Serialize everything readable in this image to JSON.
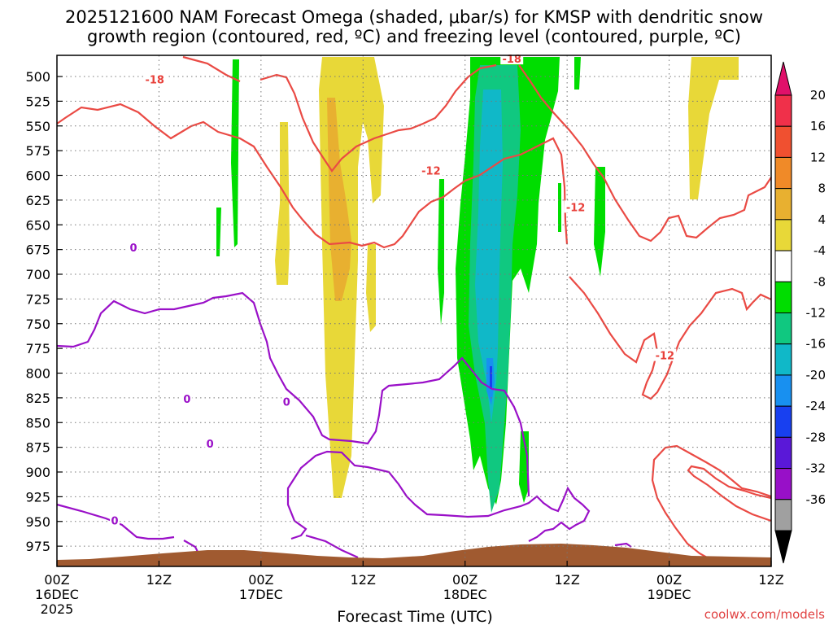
{
  "chart_data": {
    "type": "time-height cross section",
    "title_line1": "2025121600 NAM Forecast Omega (shaded, μbar/s) for KMSP with dendritic snow",
    "title_line2": "growth region (contoured, red, ºC) and freezing level (contoured, purple, ºC)",
    "xlabel": "Forecast Time (UTC)",
    "credit": "coolwx.com/models",
    "x_range_hours": [
      0,
      84
    ],
    "y_range_hpa": [
      480,
      985
    ],
    "x_ticks": [
      {
        "hour": 0,
        "label": "00Z",
        "sublabel": "16DEC",
        "sublabel2": "2025"
      },
      {
        "hour": 12,
        "label": "12Z",
        "sublabel": "",
        "sublabel2": ""
      },
      {
        "hour": 24,
        "label": "00Z",
        "sublabel": "17DEC",
        "sublabel2": ""
      },
      {
        "hour": 36,
        "label": "12Z",
        "sublabel": "",
        "sublabel2": ""
      },
      {
        "hour": 48,
        "label": "00Z",
        "sublabel": "18DEC",
        "sublabel2": ""
      },
      {
        "hour": 60,
        "label": "12Z",
        "sublabel": "",
        "sublabel2": ""
      },
      {
        "hour": 72,
        "label": "00Z",
        "sublabel": "19DEC",
        "sublabel2": ""
      },
      {
        "hour": 84,
        "label": "12Z",
        "sublabel": "",
        "sublabel2": ""
      }
    ],
    "y_ticks": [
      500,
      525,
      550,
      575,
      600,
      625,
      650,
      675,
      700,
      725,
      750,
      775,
      800,
      825,
      850,
      875,
      900,
      925,
      950,
      975
    ],
    "colorbar": {
      "labels": [
        "20",
        "16",
        "12",
        "8",
        "4",
        "-4",
        "-8",
        "-12",
        "-16",
        "-20",
        "-24",
        "-28",
        "-32",
        "-36"
      ],
      "bins": [
        {
          "range": "16 to 20",
          "color": "#f0304a"
        },
        {
          "range": "12 to 16",
          "color": "#f05030"
        },
        {
          "range": "8 to 12",
          "color": "#f08a28"
        },
        {
          "range": "4 to 8",
          "color": "#e8b030"
        },
        {
          "range": "2 to 4",
          "color": "#e8d838"
        },
        {
          "range": "-2 to 2",
          "color": "#ffffff"
        },
        {
          "range": "-8 to -4",
          "color": "#00dd00"
        },
        {
          "range": "-12 to -8",
          "color": "#10c880"
        },
        {
          "range": "-16 to -12",
          "color": "#10b8c8"
        },
        {
          "range": "-20 to -16",
          "color": "#1890f0"
        },
        {
          "range": "-24 to -20",
          "color": "#1840f0"
        },
        {
          "range": "-28 to -24",
          "color": "#5a18d8"
        },
        {
          "range": "-32 to -28",
          "color": "#9810c8"
        },
        {
          "range": "-36 to -32",
          "color": "#a0a0a0"
        }
      ],
      "top_arrow_color": "#e0106a",
      "bottom_arrow_color": "#000000"
    },
    "contour_labels": [
      {
        "text": "-18",
        "kind": "dgz",
        "hour": 11.5,
        "p": 503
      },
      {
        "text": "-18",
        "kind": "dgz",
        "hour": 53.5,
        "p": 482
      },
      {
        "text": "-12",
        "kind": "dgz",
        "hour": 44.0,
        "p": 595
      },
      {
        "text": "-12",
        "kind": "dgz",
        "hour": 61.0,
        "p": 632
      },
      {
        "text": "-12",
        "kind": "dgz",
        "hour": 71.5,
        "p": 782
      },
      {
        "text": "0",
        "kind": "freezing",
        "hour": 9.0,
        "p": 673
      },
      {
        "text": "0",
        "kind": "freezing",
        "hour": 15.3,
        "p": 826
      },
      {
        "text": "0",
        "kind": "freezing",
        "hour": 18.0,
        "p": 871
      },
      {
        "text": "0",
        "kind": "freezing",
        "hour": 6.8,
        "p": 949
      },
      {
        "text": "0",
        "kind": "freezing",
        "hour": 27.0,
        "p": 829
      }
    ],
    "dgz_color": "#ea4a44",
    "freezing_color": "#9a10c8",
    "terrain_color": "#a05a30"
  }
}
